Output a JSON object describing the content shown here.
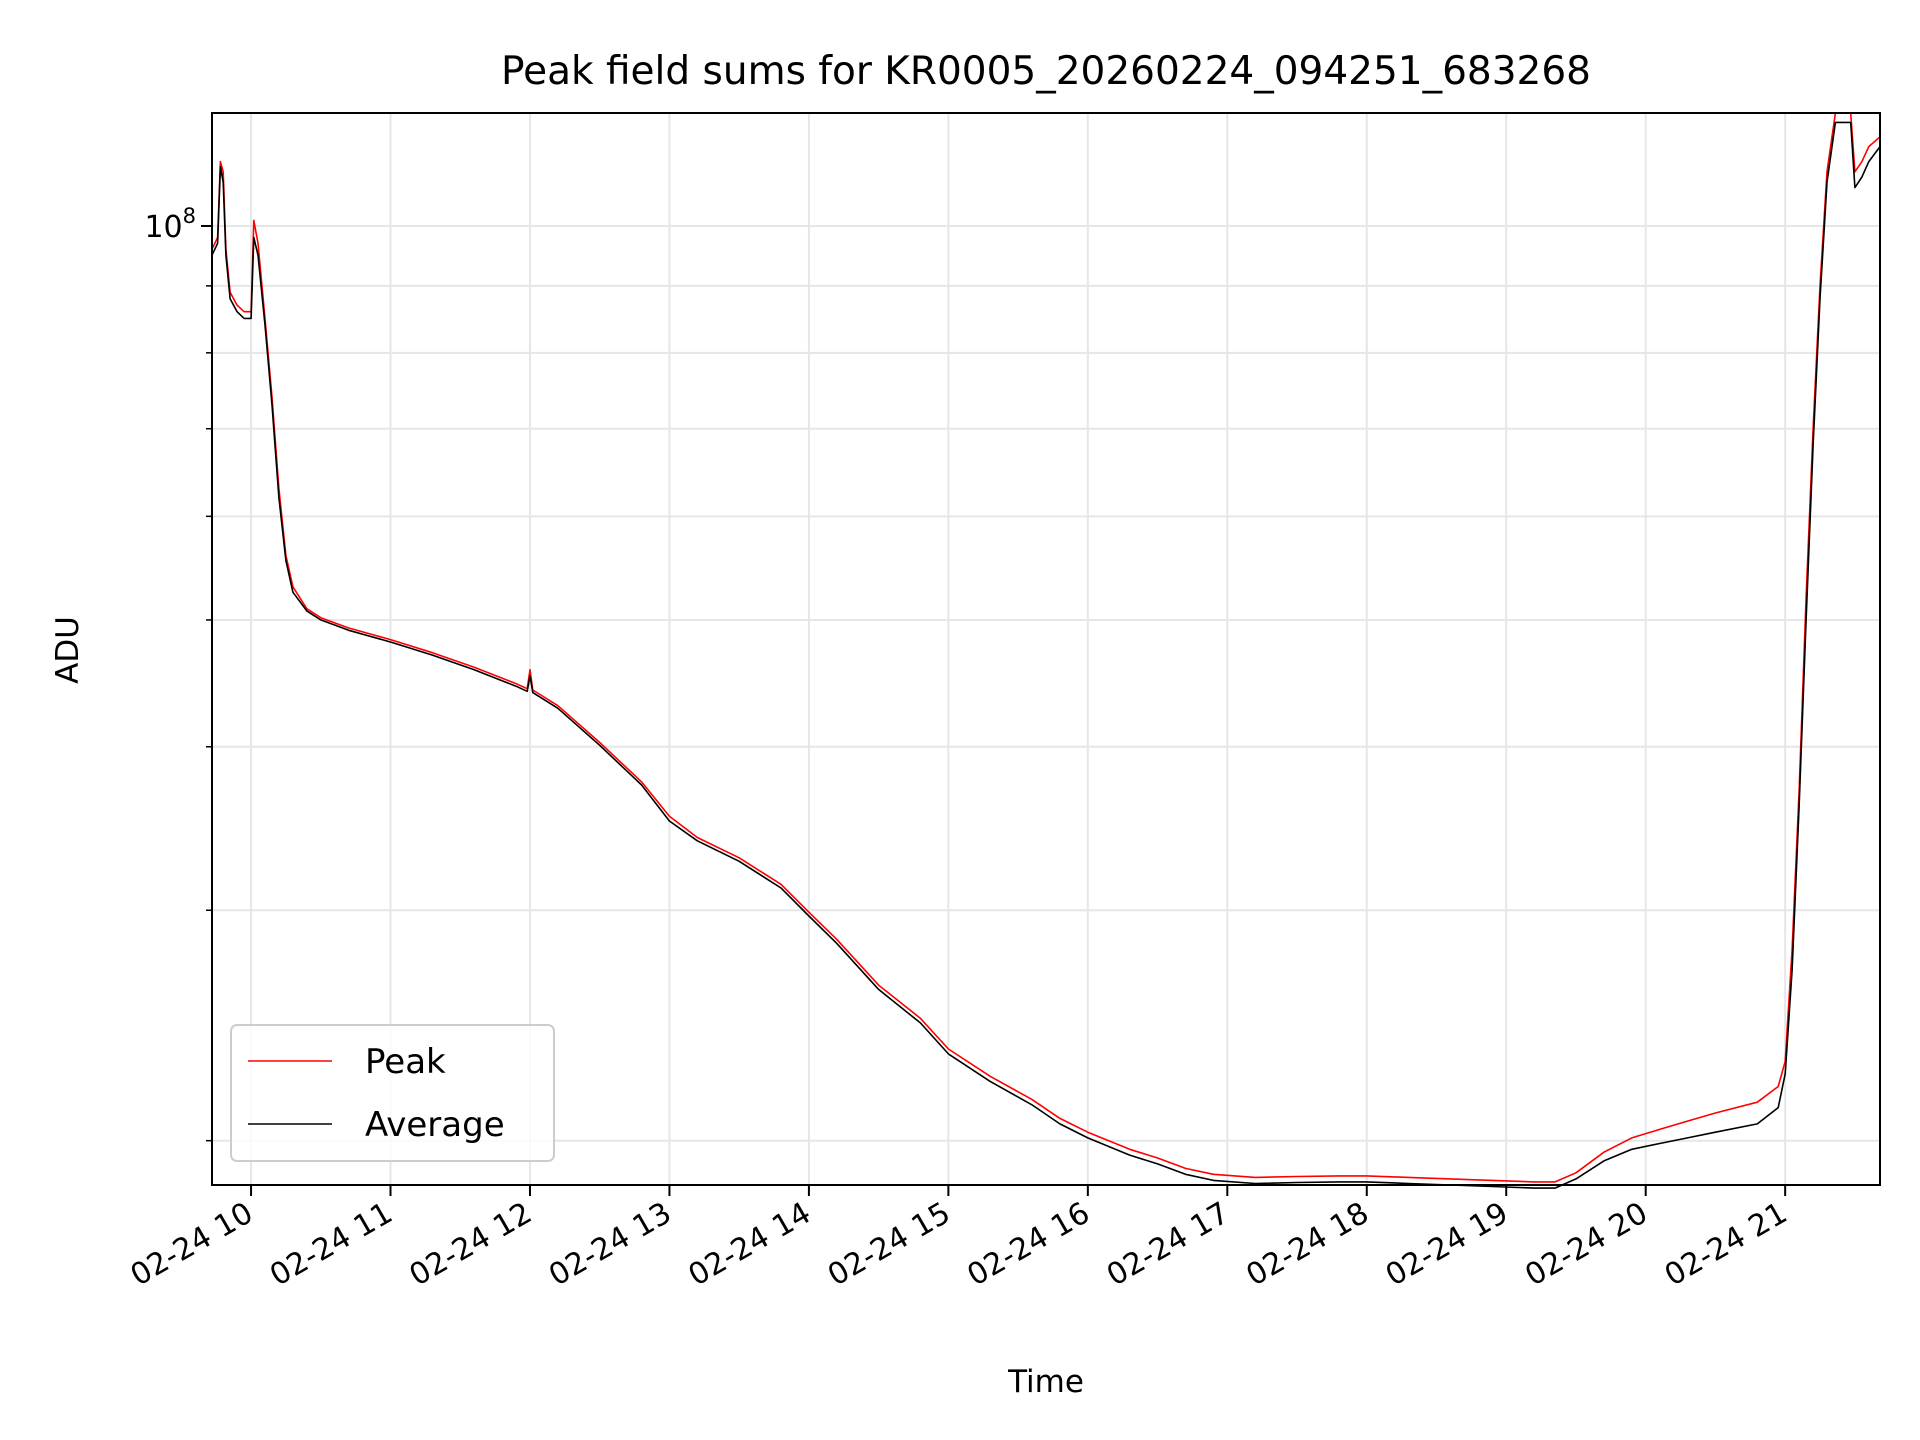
{
  "chart_data": {
    "type": "line",
    "title": "Peak field sums for KR0005_20260224_094251_683268",
    "xlabel": "Time",
    "ylabel": "ADU",
    "yscale": "log",
    "ylim": [
      18500000,
      122000000
    ],
    "xlim": [
      9.72,
      21.68
    ],
    "grid": true,
    "legend_position": "lower-left",
    "x_ticks": [
      {
        "value": 10,
        "label": "02-24 10"
      },
      {
        "value": 11,
        "label": "02-24 11"
      },
      {
        "value": 12,
        "label": "02-24 12"
      },
      {
        "value": 13,
        "label": "02-24 13"
      },
      {
        "value": 14,
        "label": "02-24 14"
      },
      {
        "value": 15,
        "label": "02-24 15"
      },
      {
        "value": 16,
        "label": "02-24 16"
      },
      {
        "value": 17,
        "label": "02-24 17"
      },
      {
        "value": 18,
        "label": "02-24 18"
      },
      {
        "value": 19,
        "label": "02-24 19"
      },
      {
        "value": 20,
        "label": "02-24 20"
      },
      {
        "value": 21,
        "label": "02-24 21"
      }
    ],
    "y_major_tick": {
      "value": 100000000,
      "label_base": "10",
      "label_exp": "8"
    },
    "y_minor_ticks": [
      20000000,
      30000000,
      40000000,
      50000000,
      60000000,
      70000000,
      80000000,
      90000000
    ],
    "series": [
      {
        "name": "Peak",
        "color": "#ff0000",
        "points": [
          [
            9.72,
            96000000
          ],
          [
            9.76,
            98000000
          ],
          [
            9.78,
            112000000
          ],
          [
            9.8,
            110000000
          ],
          [
            9.82,
            96000000
          ],
          [
            9.85,
            89000000
          ],
          [
            9.9,
            87000000
          ],
          [
            9.95,
            86000000
          ],
          [
            10.0,
            86000000
          ],
          [
            10.02,
            101000000
          ],
          [
            10.05,
            97000000
          ],
          [
            10.1,
            85000000
          ],
          [
            10.15,
            74000000
          ],
          [
            10.2,
            63000000
          ],
          [
            10.25,
            56000000
          ],
          [
            10.3,
            53000000
          ],
          [
            10.4,
            51000000
          ],
          [
            10.5,
            50200000
          ],
          [
            10.7,
            49300000
          ],
          [
            11.0,
            48300000
          ],
          [
            11.3,
            47200000
          ],
          [
            11.6,
            46000000
          ],
          [
            11.9,
            44700000
          ],
          [
            11.98,
            44300000
          ],
          [
            12.0,
            45800000
          ],
          [
            12.02,
            44200000
          ],
          [
            12.2,
            43000000
          ],
          [
            12.5,
            40300000
          ],
          [
            12.8,
            37600000
          ],
          [
            13.0,
            35400000
          ],
          [
            13.2,
            34100000
          ],
          [
            13.5,
            32900000
          ],
          [
            13.8,
            31400000
          ],
          [
            14.0,
            29900000
          ],
          [
            14.2,
            28500000
          ],
          [
            14.5,
            26300000
          ],
          [
            14.8,
            24800000
          ],
          [
            15.0,
            23500000
          ],
          [
            15.3,
            22400000
          ],
          [
            15.6,
            21500000
          ],
          [
            15.8,
            20800000
          ],
          [
            16.0,
            20300000
          ],
          [
            16.3,
            19700000
          ],
          [
            16.5,
            19400000
          ],
          [
            16.7,
            19050000
          ],
          [
            16.9,
            18850000
          ],
          [
            17.2,
            18750000
          ],
          [
            17.5,
            18780000
          ],
          [
            17.8,
            18800000
          ],
          [
            18.0,
            18800000
          ],
          [
            18.3,
            18750000
          ],
          [
            18.6,
            18700000
          ],
          [
            18.9,
            18650000
          ],
          [
            19.2,
            18600000
          ],
          [
            19.35,
            18600000
          ],
          [
            19.5,
            18900000
          ],
          [
            19.7,
            19600000
          ],
          [
            19.9,
            20100000
          ],
          [
            20.1,
            20400000
          ],
          [
            20.3,
            20700000
          ],
          [
            20.5,
            21000000
          ],
          [
            20.8,
            21400000
          ],
          [
            20.95,
            22000000
          ],
          [
            21.0,
            23000000
          ],
          [
            21.05,
            28000000
          ],
          [
            21.1,
            37000000
          ],
          [
            21.15,
            52000000
          ],
          [
            21.2,
            70000000
          ],
          [
            21.25,
            90000000
          ],
          [
            21.3,
            110000000
          ],
          [
            21.36,
            122000000
          ],
          [
            21.47,
            122000000
          ],
          [
            21.5,
            110000000
          ],
          [
            21.55,
            112000000
          ],
          [
            21.6,
            115000000
          ],
          [
            21.68,
            117000000
          ]
        ]
      },
      {
        "name": "Average",
        "color": "#000000",
        "points": [
          [
            9.72,
            95000000
          ],
          [
            9.76,
            97000000
          ],
          [
            9.78,
            111000000
          ],
          [
            9.8,
            108000000
          ],
          [
            9.82,
            95000000
          ],
          [
            9.85,
            88000000
          ],
          [
            9.9,
            86000000
          ],
          [
            9.95,
            85000000
          ],
          [
            10.0,
            85000000
          ],
          [
            10.02,
            98000000
          ],
          [
            10.05,
            95000000
          ],
          [
            10.1,
            84000000
          ],
          [
            10.15,
            73000000
          ],
          [
            10.2,
            62000000
          ],
          [
            10.25,
            55500000
          ],
          [
            10.3,
            52500000
          ],
          [
            10.4,
            50800000
          ],
          [
            10.5,
            50000000
          ],
          [
            10.7,
            49100000
          ],
          [
            11.0,
            48100000
          ],
          [
            11.3,
            47000000
          ],
          [
            11.6,
            45800000
          ],
          [
            11.9,
            44500000
          ],
          [
            11.98,
            44100000
          ],
          [
            12.0,
            45300000
          ],
          [
            12.02,
            44000000
          ],
          [
            12.2,
            42800000
          ],
          [
            12.5,
            40100000
          ],
          [
            12.8,
            37400000
          ],
          [
            13.0,
            35100000
          ],
          [
            13.2,
            33900000
          ],
          [
            13.5,
            32700000
          ],
          [
            13.8,
            31200000
          ],
          [
            14.0,
            29700000
          ],
          [
            14.2,
            28300000
          ],
          [
            14.5,
            26100000
          ],
          [
            14.8,
            24600000
          ],
          [
            15.0,
            23300000
          ],
          [
            15.3,
            22200000
          ],
          [
            15.6,
            21300000
          ],
          [
            15.8,
            20600000
          ],
          [
            16.0,
            20100000
          ],
          [
            16.3,
            19500000
          ],
          [
            16.5,
            19200000
          ],
          [
            16.7,
            18850000
          ],
          [
            16.9,
            18650000
          ],
          [
            17.2,
            18550000
          ],
          [
            17.5,
            18580000
          ],
          [
            17.8,
            18600000
          ],
          [
            18.0,
            18600000
          ],
          [
            18.3,
            18550000
          ],
          [
            18.6,
            18500000
          ],
          [
            18.9,
            18450000
          ],
          [
            19.2,
            18400000
          ],
          [
            19.35,
            18400000
          ],
          [
            19.5,
            18700000
          ],
          [
            19.7,
            19300000
          ],
          [
            19.9,
            19700000
          ],
          [
            20.1,
            19900000
          ],
          [
            20.3,
            20100000
          ],
          [
            20.5,
            20300000
          ],
          [
            20.8,
            20600000
          ],
          [
            20.95,
            21200000
          ],
          [
            21.0,
            22500000
          ],
          [
            21.05,
            27000000
          ],
          [
            21.1,
            36000000
          ],
          [
            21.15,
            50000000
          ],
          [
            21.2,
            68000000
          ],
          [
            21.25,
            88000000
          ],
          [
            21.3,
            108000000
          ],
          [
            21.36,
            120000000
          ],
          [
            21.47,
            120000000
          ],
          [
            21.5,
            107000000
          ],
          [
            21.55,
            109000000
          ],
          [
            21.6,
            112000000
          ],
          [
            21.68,
            115000000
          ]
        ]
      }
    ]
  }
}
